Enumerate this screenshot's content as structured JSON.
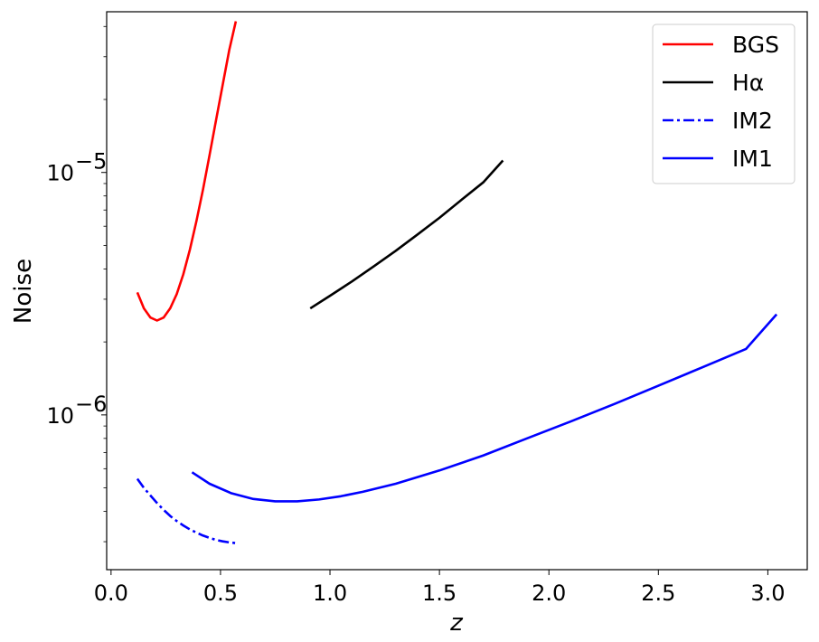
{
  "chart_data": {
    "type": "line",
    "xlabel": "z",
    "ylabel": "Noise",
    "xlim": [
      -0.02,
      3.18
    ],
    "ylim": [
      2.3e-07,
      4.6e-05
    ],
    "yscale": "log",
    "grid": false,
    "legend_position": "top-right",
    "x_ticks": [
      {
        "value": 0.0,
        "label": "0.0"
      },
      {
        "value": 0.5,
        "label": "0.5"
      },
      {
        "value": 1.0,
        "label": "1.0"
      },
      {
        "value": 1.5,
        "label": "1.5"
      },
      {
        "value": 2.0,
        "label": "2.0"
      },
      {
        "value": 2.5,
        "label": "2.5"
      },
      {
        "value": 3.0,
        "label": "3.0"
      }
    ],
    "y_major_ticks": [
      {
        "value": 1e-06,
        "base": "10",
        "exp": "−6"
      },
      {
        "value": 1e-05,
        "base": "10",
        "exp": "−5"
      }
    ],
    "series": [
      {
        "name": "BGS",
        "color": "#ff0000",
        "dash": "solid",
        "x": [
          0.12,
          0.15,
          0.18,
          0.21,
          0.24,
          0.27,
          0.3,
          0.33,
          0.36,
          0.39,
          0.42,
          0.45,
          0.48,
          0.51,
          0.54,
          0.57
        ],
        "y": [
          3.2e-06,
          2.75e-06,
          2.52e-06,
          2.45e-06,
          2.52e-06,
          2.75e-06,
          3.15e-06,
          3.8e-06,
          4.8e-06,
          6.3e-06,
          8.5e-06,
          1.18e-05,
          1.65e-05,
          2.3e-05,
          3.2e-05,
          4.2e-05
        ]
      },
      {
        "name": "Hα",
        "color": "#000000",
        "dash": "solid",
        "x": [
          0.91,
          1.0,
          1.1,
          1.2,
          1.3,
          1.4,
          1.5,
          1.6,
          1.7,
          1.79
        ],
        "y": [
          2.75e-06,
          3.1e-06,
          3.55e-06,
          4.1e-06,
          4.75e-06,
          5.55e-06,
          6.5e-06,
          7.7e-06,
          9.1e-06,
          1.12e-05
        ]
      },
      {
        "name": "IM2",
        "color": "#0000ff",
        "dash": "dashdot",
        "x": [
          0.12,
          0.15,
          0.18,
          0.21,
          0.24,
          0.27,
          0.3,
          0.33,
          0.36,
          0.39,
          0.42,
          0.45,
          0.48,
          0.51,
          0.54,
          0.57
        ],
        "y": [
          5.45e-07,
          5e-07,
          4.65e-07,
          4.33e-07,
          4.06e-07,
          3.83e-07,
          3.65e-07,
          3.5e-07,
          3.37e-07,
          3.27e-07,
          3.18e-07,
          3.11e-07,
          3.05e-07,
          3.01e-07,
          2.98e-07,
          2.96e-07
        ]
      },
      {
        "name": "IM1",
        "color": "#0000ff",
        "dash": "solid",
        "x": [
          0.37,
          0.45,
          0.55,
          0.65,
          0.75,
          0.85,
          0.95,
          1.05,
          1.15,
          1.3,
          1.5,
          1.7,
          1.9,
          2.1,
          2.3,
          2.5,
          2.7,
          2.9,
          3.04
        ],
        "y": [
          5.8e-07,
          5.2e-07,
          4.75e-07,
          4.5e-07,
          4.4e-07,
          4.4e-07,
          4.48e-07,
          4.62e-07,
          4.82e-07,
          5.2e-07,
          5.9e-07,
          6.8e-07,
          8e-07,
          9.4e-07,
          1.11e-06,
          1.32e-06,
          1.57e-06,
          1.87e-06,
          2.6e-06
        ]
      }
    ]
  }
}
